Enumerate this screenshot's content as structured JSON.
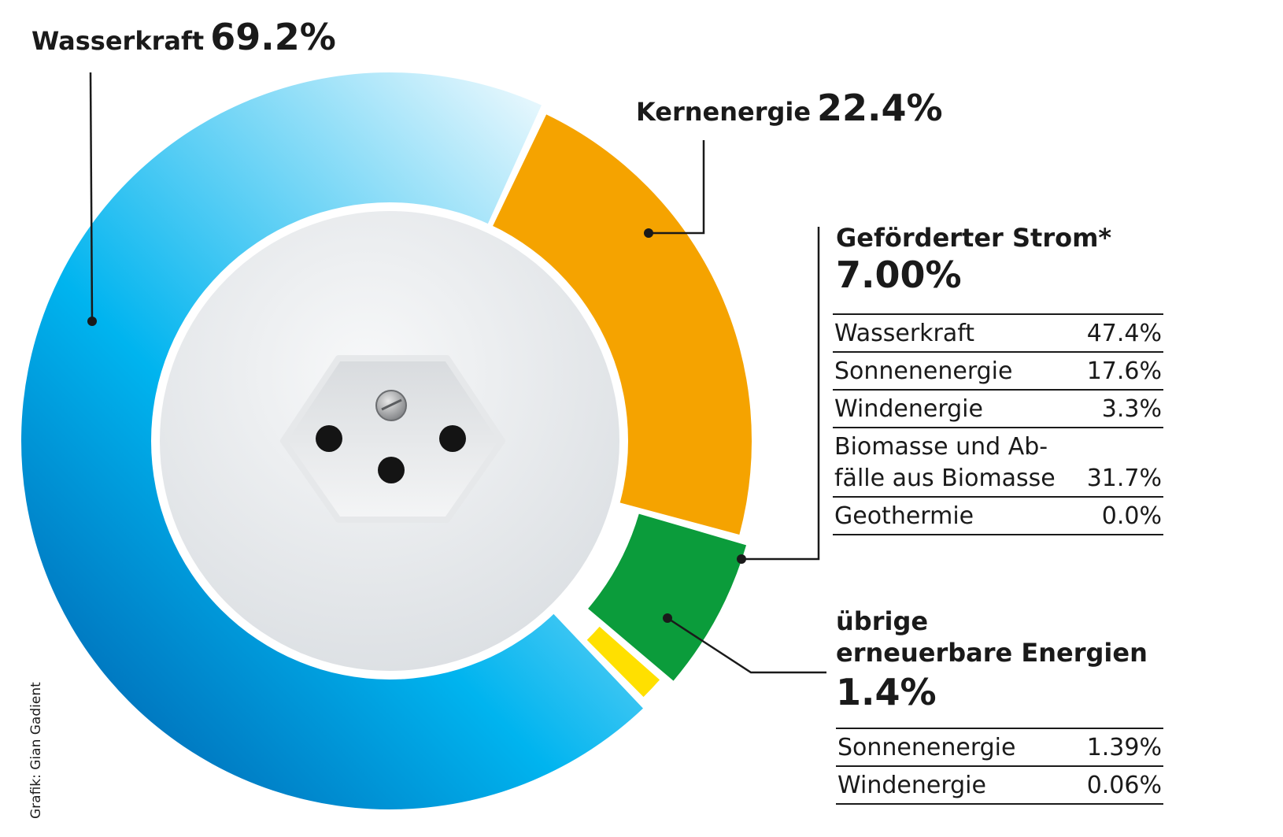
{
  "chart_data": {
    "type": "pie",
    "slices": [
      {
        "label": "Wasserkraft",
        "value": 69.2,
        "display": "69.2%",
        "color": "#00aeef"
      },
      {
        "label": "Kernenergie",
        "value": 22.4,
        "display": "22.4%",
        "color": "#f5a300"
      },
      {
        "label": "Geförderter Strom*",
        "value": 7.0,
        "display": "7.00%",
        "color": "#0b9c3b"
      },
      {
        "label": "übrige erneuerbare Energien",
        "value": 1.4,
        "display": "1.4%",
        "color": "#ffe000"
      }
    ],
    "breakdowns": {
      "gefoerderter_strom": {
        "title": "Geförderter Strom*",
        "total": "7.00%",
        "rows": [
          {
            "name": "Wasserkraft",
            "value": "47.4%"
          },
          {
            "name": "Sonnenenergie",
            "value": "17.6%"
          },
          {
            "name": "Windenergie",
            "value": "3.3%"
          },
          {
            "name": "Biomasse und Ab-\nfälle aus Biomasse",
            "value": "31.7%"
          },
          {
            "name": "Geothermie",
            "value": "0.0%"
          }
        ]
      },
      "uebrige_erneuerbare": {
        "title": "übrige erneuerbare Energien",
        "title_line1": "übrige",
        "title_line2": "erneuerbare Energien",
        "total": "1.4%",
        "rows": [
          {
            "name": "Sonnenenergie",
            "value": "1.39%"
          },
          {
            "name": "Windenergie",
            "value": "0.06%"
          }
        ]
      }
    }
  },
  "credit": "Grafik: Gian Gadient",
  "colors": {
    "hydro_dark": "#0056a6",
    "hydro_mid": "#00b4ef",
    "hydro_light": "#eaf7fd",
    "nuclear": "#f5a300",
    "subsidized": "#0b9c3b",
    "other_renewables": "#ffe000",
    "socket_face": "#e8ebee",
    "leader_line": "#1a1a1a"
  }
}
